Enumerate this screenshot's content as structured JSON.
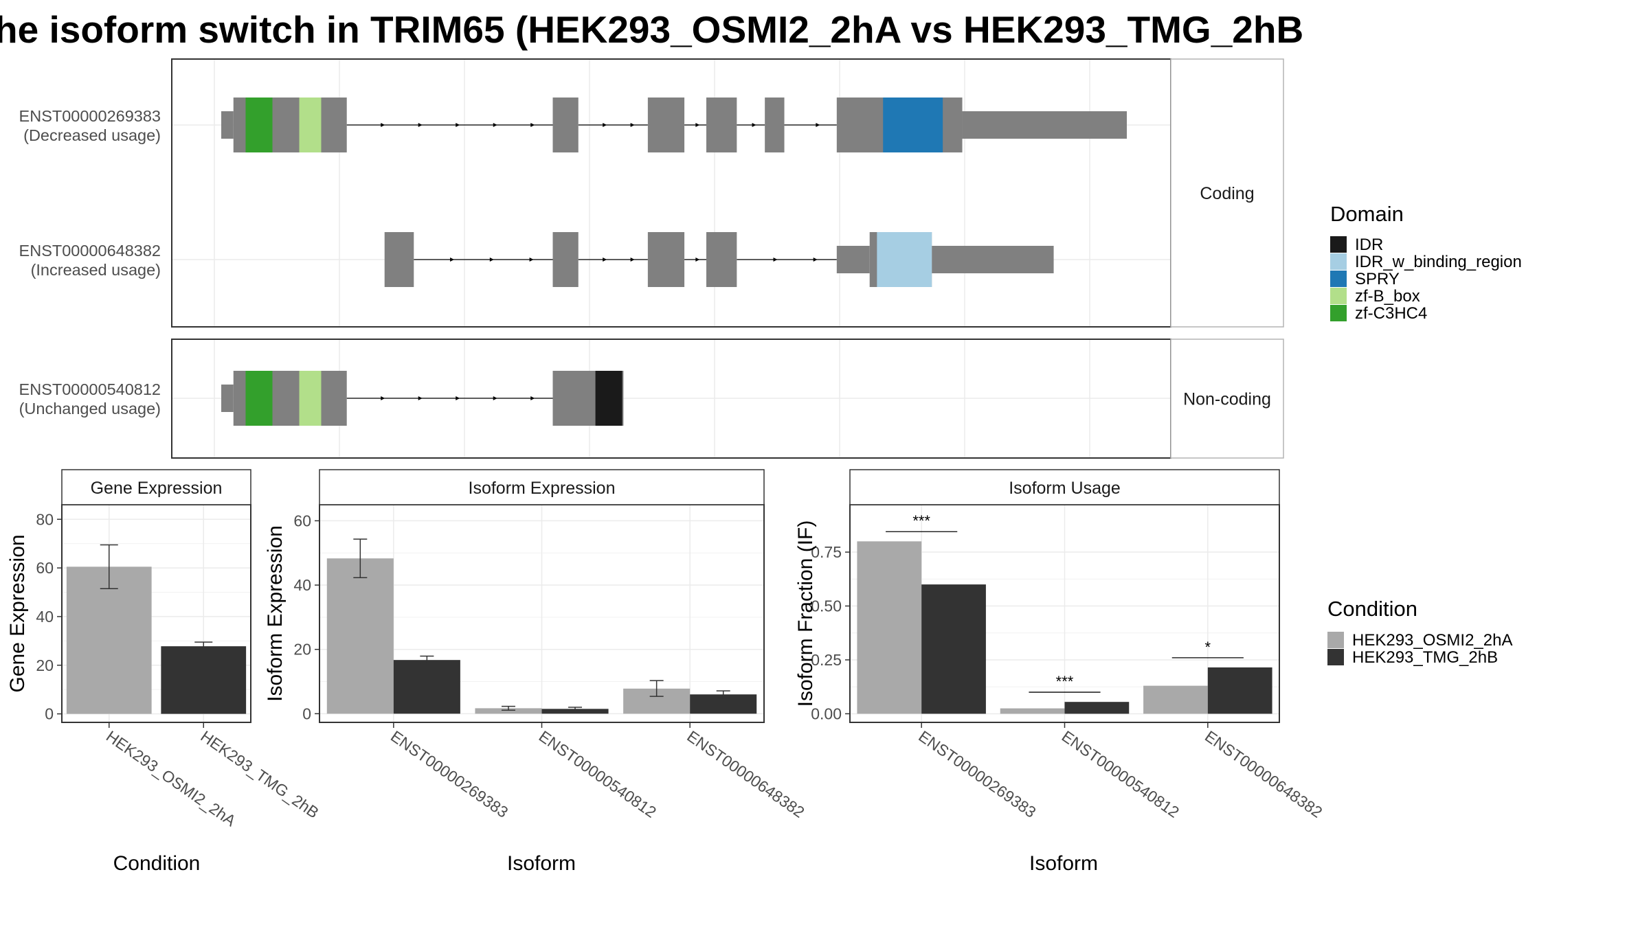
{
  "title": "he isoform switch in TRIM65 (HEK293_OSMI2_2hA vs HEK293_TMG_2hB",
  "colors": {
    "exon": "#808080",
    "intron": "#000000",
    "IDR": "#1a1a1a",
    "IDR_w_binding_region": "#a6cee3",
    "SPRY": "#1f78b4",
    "zf-B_box": "#b2df8a",
    "zf-C3HC4": "#33a02c",
    "cond_a": "#a9a9a9",
    "cond_b": "#333333"
  },
  "structure": {
    "panels": [
      {
        "strip": "Coding",
        "transcripts": [
          {
            "id": "ENST00000269383",
            "usage": "(Decreased usage)",
            "exons": [
              {
                "start": 0,
                "end": 10,
                "cds": false
              },
              {
                "start": 10,
                "end": 103,
                "cds": true
              },
              {
                "start": 272,
                "end": 293,
                "cds": true
              },
              {
                "start": 350,
                "end": 380,
                "cds": true
              },
              {
                "start": 398,
                "end": 423,
                "cds": true
              },
              {
                "start": 446,
                "end": 462,
                "cds": true
              },
              {
                "start": 505,
                "end": 608,
                "cds": true
              },
              {
                "start": 608,
                "end": 743,
                "cds": false
              }
            ],
            "domains": [
              {
                "name": "zf-C3HC4",
                "start": 20,
                "end": 42
              },
              {
                "name": "zf-B_box",
                "start": 64,
                "end": 82
              },
              {
                "name": "SPRY",
                "start": 543,
                "end": 592
              }
            ]
          },
          {
            "id": "ENST00000648382",
            "usage": "(Increased usage)",
            "exons": [
              {
                "start": 134,
                "end": 158,
                "cds": true
              },
              {
                "start": 272,
                "end": 293,
                "cds": true
              },
              {
                "start": 350,
                "end": 380,
                "cds": true
              },
              {
                "start": 398,
                "end": 423,
                "cds": true
              },
              {
                "start": 505,
                "end": 532,
                "cds": false
              },
              {
                "start": 532,
                "end": 583,
                "cds": true
              },
              {
                "start": 583,
                "end": 683,
                "cds": false
              }
            ],
            "domains": [
              {
                "name": "IDR_w_binding_region",
                "start": 538,
                "end": 583
              }
            ]
          }
        ]
      },
      {
        "strip": "Non-coding",
        "transcripts": [
          {
            "id": "ENST00000540812",
            "usage": "(Unchanged usage)",
            "exons": [
              {
                "start": 0,
                "end": 10,
                "cds": false
              },
              {
                "start": 10,
                "end": 103,
                "cds": true
              },
              {
                "start": 272,
                "end": 330,
                "cds": true
              }
            ],
            "domains": [
              {
                "name": "zf-C3HC4",
                "start": 20,
                "end": 42
              },
              {
                "name": "zf-B_box",
                "start": 64,
                "end": 82
              },
              {
                "name": "IDR",
                "start": 307,
                "end": 329
              }
            ]
          }
        ]
      }
    ]
  },
  "legend_domain": {
    "title": "Domain",
    "items": [
      "IDR",
      "IDR_w_binding_region",
      "SPRY",
      "zf-B_box",
      "zf-C3HC4"
    ]
  },
  "legend_condition": {
    "title": "Condition",
    "items": [
      "HEK293_OSMI2_2hA",
      "HEK293_TMG_2hB"
    ]
  },
  "chart_data": [
    {
      "type": "bar",
      "title": "Gene Expression",
      "xlabel": "Condition",
      "ylabel": "Gene Expression",
      "categories": [
        "HEK293_OSMI2_2hA",
        "HEK293_TMG_2hB"
      ],
      "values": [
        60.5,
        27.8
      ],
      "errors": [
        [
          51.5,
          69.5
        ],
        [
          26.2,
          29.5
        ]
      ],
      "ylim": [
        -3.5,
        86
      ],
      "yticks": [
        0,
        20,
        40,
        60,
        80
      ]
    },
    {
      "type": "bar",
      "title": "Isoform Expression",
      "xlabel": "Isoform",
      "ylabel": "Isoform Expression",
      "categories": [
        "ENST00000269383",
        "ENST00000540812",
        "ENST00000648382"
      ],
      "series": [
        {
          "name": "HEK293_OSMI2_2hA",
          "values": [
            48.3,
            1.7,
            7.8
          ],
          "errors": [
            [
              42.3,
              54.3
            ],
            [
              1.1,
              2.3
            ],
            [
              5.4,
              10.3
            ]
          ]
        },
        {
          "name": "HEK293_TMG_2hB",
          "values": [
            16.7,
            1.5,
            6.0
          ],
          "errors": [
            [
              15.5,
              17.9
            ],
            [
              1.0,
              2.0
            ],
            [
              4.9,
              7.1
            ]
          ]
        }
      ],
      "ylim": [
        -2.7,
        65
      ],
      "yticks": [
        0,
        20,
        40,
        60
      ]
    },
    {
      "type": "bar",
      "title": "Isoform Usage",
      "xlabel": "Isoform",
      "ylabel": "Isoform Fraction (IF)",
      "categories": [
        "ENST00000269383",
        "ENST00000540812",
        "ENST00000648382"
      ],
      "series": [
        {
          "name": "HEK293_OSMI2_2hA",
          "values": [
            0.8,
            0.025,
            0.13
          ]
        },
        {
          "name": "HEK293_TMG_2hB",
          "values": [
            0.6,
            0.055,
            0.215
          ]
        }
      ],
      "significance": [
        {
          "category": "ENST00000269383",
          "label": "***",
          "y": 0.845
        },
        {
          "category": "ENST00000540812",
          "label": "***",
          "y": 0.1
        },
        {
          "category": "ENST00000648382",
          "label": "*",
          "y": 0.26
        }
      ],
      "ylim": [
        -0.04,
        0.97
      ],
      "yticks": [
        "0.00",
        "0.25",
        "0.50",
        "0.75"
      ]
    }
  ]
}
